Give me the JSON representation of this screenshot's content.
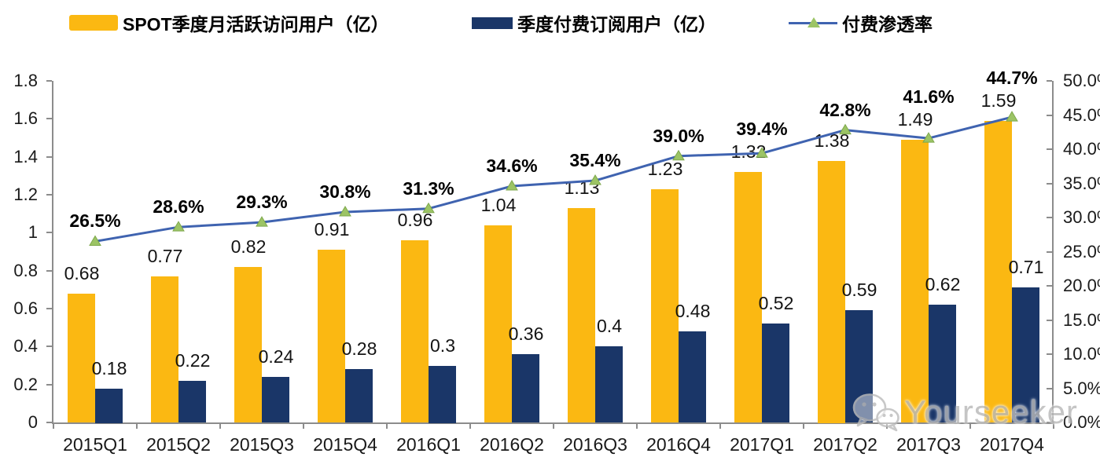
{
  "chart_data": {
    "type": "combo-bar-line",
    "categories": [
      "2015Q1",
      "2015Q2",
      "2015Q3",
      "2015Q4",
      "2016Q1",
      "2016Q2",
      "2016Q3",
      "2016Q4",
      "2017Q1",
      "2017Q2",
      "2017Q3",
      "2017Q4"
    ],
    "series": [
      {
        "name": "SPOT季度月活跃访问用户（亿）",
        "type": "bar",
        "axis": "left",
        "color": "#FBB812",
        "values": [
          0.68,
          0.77,
          0.82,
          0.91,
          0.96,
          1.04,
          1.13,
          1.23,
          1.32,
          1.38,
          1.49,
          1.59
        ],
        "labels": [
          "0.68",
          "0.77",
          "0.82",
          "0.91",
          "0.96",
          "1.04",
          "1.13",
          "1.23",
          "1.32",
          "1.38",
          "1.49",
          "1.59"
        ]
      },
      {
        "name": "季度付费订阅用户（亿）",
        "type": "bar",
        "axis": "left",
        "color": "#1A3668",
        "values": [
          0.18,
          0.22,
          0.24,
          0.28,
          0.3,
          0.36,
          0.4,
          0.48,
          0.52,
          0.59,
          0.62,
          0.71
        ],
        "labels": [
          "0.18",
          "0.22",
          "0.24",
          "0.28",
          "0.3",
          "0.36",
          "0.4",
          "0.48",
          "0.52",
          "0.59",
          "0.62",
          "0.71"
        ]
      },
      {
        "name": "付费渗透率",
        "type": "line",
        "axis": "right",
        "color": "#3F63B0",
        "marker": "triangle",
        "marker_color": "#9CC465",
        "values": [
          26.5,
          28.6,
          29.3,
          30.8,
          31.3,
          34.6,
          35.4,
          39.0,
          39.4,
          42.8,
          41.6,
          44.7
        ],
        "labels": [
          "26.5%",
          "28.6%",
          "29.3%",
          "30.8%",
          "31.3%",
          "34.6%",
          "35.4%",
          "39.0%",
          "39.4%",
          "42.8%",
          "41.6%",
          "44.7%"
        ]
      }
    ],
    "left_axis": {
      "min": 0,
      "max": 1.8,
      "ticks": [
        "1.8",
        "1.6",
        "1.4",
        "1.2",
        "1",
        "0.8",
        "0.6",
        "0.4",
        "0.2",
        "0"
      ]
    },
    "right_axis": {
      "min": 0,
      "max": 50,
      "ticks": [
        "50.0%",
        "45.0%",
        "40.0%",
        "35.0%",
        "30.0%",
        "25.0%",
        "20.0%",
        "15.0%",
        "10.0%",
        "5.0%",
        "0.0%"
      ]
    },
    "grid": false,
    "legend_position": "top",
    "axis_color": "#8c8c8c"
  },
  "watermark": {
    "text": "Yourseeker"
  }
}
